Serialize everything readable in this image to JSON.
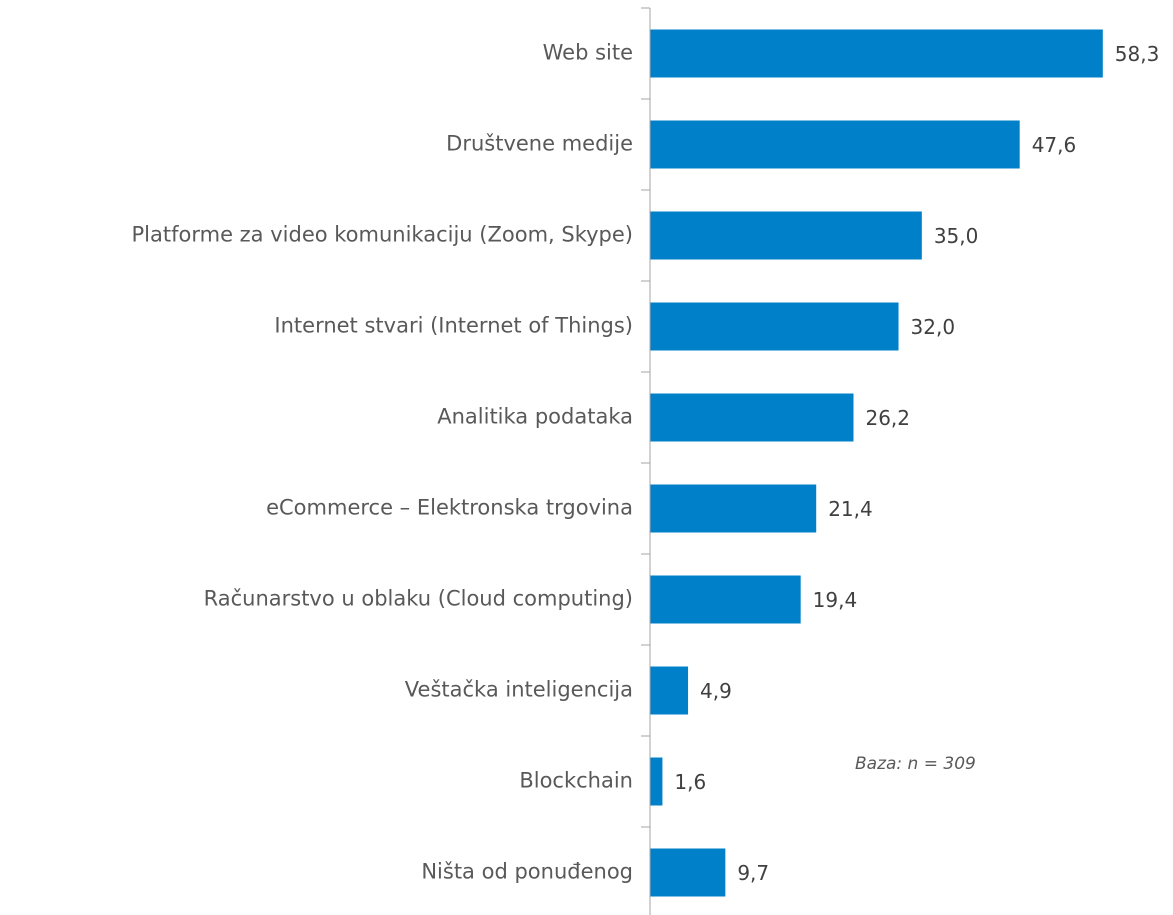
{
  "chart_data": {
    "type": "bar",
    "orientation": "horizontal",
    "categories": [
      "Web site",
      "Društvene medije",
      "Platforme za video komunikaciju (Zoom, Skype)",
      "Internet stvari (Internet of Things)",
      "Analitika podataka",
      "eCommerce – Elektronska trgovina",
      "Računarstvo u oblaku (Cloud computing)",
      "Veštačka inteligencija",
      "Blockchain",
      "Ništa od ponuđenog"
    ],
    "values": [
      58.3,
      47.6,
      35.0,
      32.0,
      26.2,
      21.4,
      19.4,
      4.9,
      1.6,
      9.7
    ],
    "value_labels": [
      "58,3",
      "47,6",
      "35,0",
      "32,0",
      "26,2",
      "21,4",
      "19,4",
      "4,9",
      "1,6",
      "9,7"
    ],
    "color": "#0080c8",
    "xlim": [
      0,
      60
    ],
    "annotation": "Baza: n = 309"
  }
}
